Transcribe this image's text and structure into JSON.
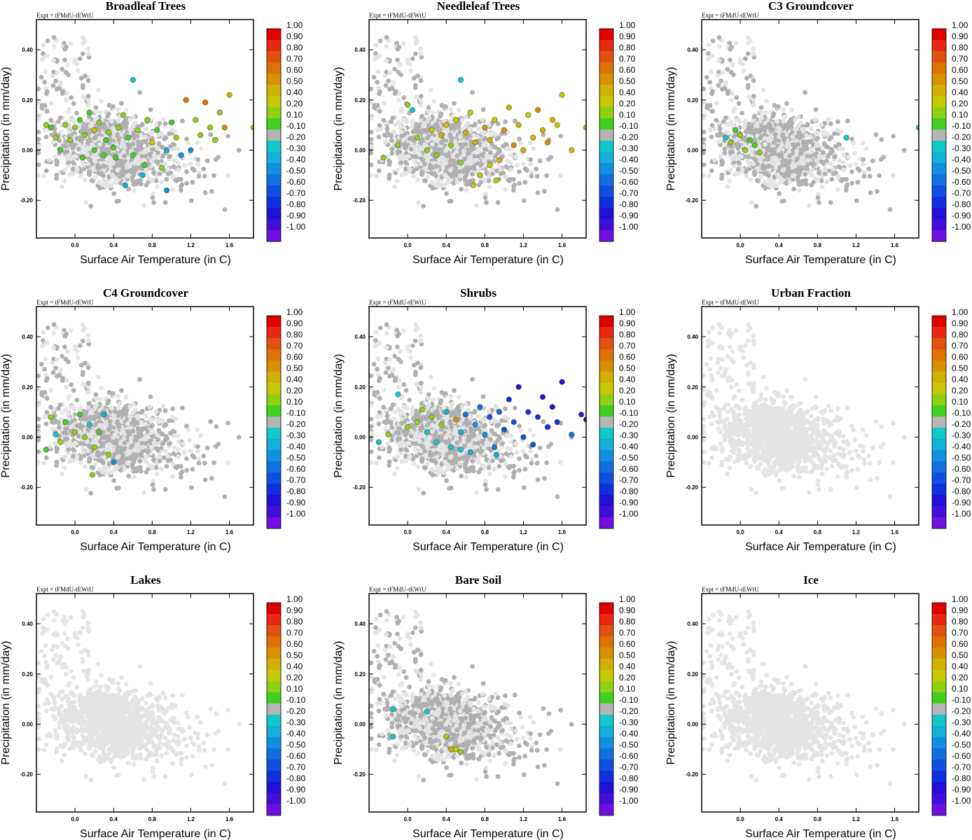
{
  "figure": {
    "expt_label": "Expt = tFMdU-tEWtU"
  },
  "colorbar": {
    "labels": [
      "1.00",
      "0.90",
      "0.80",
      "0.70",
      "0.60",
      "0.50",
      "0.40",
      "0.20",
      "0.10",
      "-0.10",
      "-0.20",
      "-0.30",
      "-0.40",
      "-0.50",
      "-0.60",
      "-0.70",
      "-0.80",
      "-0.90",
      "-1.00"
    ],
    "colors": [
      "#e00000",
      "#e82810",
      "#e05010",
      "#e07000",
      "#d89000",
      "#d0b000",
      "#c8c800",
      "#90d010",
      "#40d020",
      "#b4b4b4",
      "#10c8c8",
      "#10b0d8",
      "#1090e0",
      "#1070e0",
      "#1050e0",
      "#1030e0",
      "#2010d8",
      "#4010d8",
      "#7010e0"
    ]
  },
  "chart_data": [
    {
      "type": "scatter",
      "title": "Broadleaf Trees",
      "xlabel": "Surface Air Temperature (in C)",
      "ylabel": "Precipitation (in mm/day)",
      "xlim": [
        -0.4,
        1.85
      ],
      "ylim": [
        -0.35,
        0.52
      ],
      "xticks": [
        "0.0",
        "0.4",
        "0.8",
        "1.2",
        "1.6"
      ],
      "yticks": [
        "0.40",
        "0.20",
        "0.00",
        "-0.20"
      ],
      "highlight": [
        [
          -0.25,
          0.09,
          0.15
        ],
        [
          -0.2,
          0.05,
          0.2
        ],
        [
          -0.15,
          0.0,
          0.15
        ],
        [
          -0.1,
          0.1,
          0.2
        ],
        [
          -0.05,
          0.04,
          0.2
        ],
        [
          0.0,
          0.09,
          0.3
        ],
        [
          0.05,
          0.12,
          0.15
        ],
        [
          0.1,
          0.06,
          0.2
        ],
        [
          0.15,
          0.15,
          0.1
        ],
        [
          0.2,
          0.0,
          0.15
        ],
        [
          0.2,
          0.08,
          0.4
        ],
        [
          0.25,
          0.11,
          0.2
        ],
        [
          0.3,
          -0.02,
          0.15
        ],
        [
          0.32,
          0.04,
          0.1
        ],
        [
          0.35,
          0.07,
          0.2
        ],
        [
          0.4,
          0.01,
          0.15
        ],
        [
          0.42,
          -0.03,
          0.1
        ],
        [
          0.45,
          0.09,
          0.2
        ],
        [
          0.5,
          0.14,
          0.3
        ],
        [
          0.55,
          0.05,
          0.15
        ],
        [
          0.6,
          0.28,
          -0.2
        ],
        [
          0.6,
          -0.02,
          0.1
        ],
        [
          0.65,
          0.08,
          0.2
        ],
        [
          0.7,
          -0.1,
          -0.3
        ],
        [
          0.72,
          -0.06,
          0.15
        ],
        [
          0.75,
          0.12,
          0.2
        ],
        [
          0.8,
          0.03,
          0.4
        ],
        [
          0.85,
          0.08,
          0.1
        ],
        [
          0.9,
          -0.07,
          0.2
        ],
        [
          0.95,
          0.0,
          -0.3
        ],
        [
          1.0,
          0.11,
          0.1
        ],
        [
          1.05,
          0.05,
          0.2
        ],
        [
          1.1,
          -0.02,
          -0.4
        ],
        [
          1.15,
          0.2,
          0.7
        ],
        [
          1.2,
          0.0,
          -0.4
        ],
        [
          1.25,
          0.12,
          0.2
        ],
        [
          1.3,
          0.06,
          0.2
        ],
        [
          1.35,
          0.19,
          0.7
        ],
        [
          1.4,
          0.09,
          0.2
        ],
        [
          1.45,
          0.04,
          0.3
        ],
        [
          1.5,
          0.15,
          0.3
        ],
        [
          1.55,
          0.09,
          0.6
        ],
        [
          1.6,
          0.22,
          0.5
        ],
        [
          1.85,
          0.09,
          0.5
        ],
        [
          0.52,
          -0.14,
          -0.3
        ],
        [
          0.95,
          -0.16,
          -0.4
        ],
        [
          -0.3,
          0.1,
          0.2
        ],
        [
          0.08,
          -0.03,
          0.1
        ]
      ]
    },
    {
      "type": "scatter",
      "title": "Needleleaf Trees",
      "xlabel": "Surface Air Temperature (in C)",
      "ylabel": "Precipitation (in mm/day)",
      "xlim": [
        -0.4,
        1.85
      ],
      "ylim": [
        -0.35,
        0.52
      ],
      "xticks": [
        "0.0",
        "0.4",
        "0.8",
        "1.2",
        "1.6"
      ],
      "yticks": [
        "0.40",
        "0.20",
        "0.00",
        "-0.20"
      ],
      "highlight": [
        [
          -0.25,
          -0.03,
          0.2
        ],
        [
          -0.1,
          0.02,
          0.2
        ],
        [
          0.0,
          0.18,
          0.2
        ],
        [
          0.05,
          0.16,
          -0.2
        ],
        [
          0.1,
          0.05,
          0.3
        ],
        [
          0.2,
          0.0,
          0.2
        ],
        [
          0.25,
          0.08,
          0.4
        ],
        [
          0.3,
          -0.02,
          0.2
        ],
        [
          0.35,
          0.06,
          0.5
        ],
        [
          0.4,
          0.1,
          0.4
        ],
        [
          0.45,
          0.02,
          0.3
        ],
        [
          0.5,
          0.12,
          0.4
        ],
        [
          0.55,
          -0.05,
          0.2
        ],
        [
          0.6,
          0.07,
          0.5
        ],
        [
          0.65,
          0.15,
          0.4
        ],
        [
          0.7,
          0.03,
          0.5
        ],
        [
          0.75,
          -0.1,
          0.4
        ],
        [
          0.8,
          0.09,
          0.6
        ],
        [
          0.85,
          0.04,
          0.5
        ],
        [
          0.9,
          0.12,
          0.4
        ],
        [
          0.95,
          -0.04,
          0.5
        ],
        [
          1.0,
          0.08,
          0.6
        ],
        [
          1.05,
          0.17,
          0.5
        ],
        [
          1.1,
          0.02,
          0.6
        ],
        [
          1.15,
          0.1,
          0.5
        ],
        [
          1.2,
          0.0,
          0.5
        ],
        [
          1.25,
          0.14,
          0.4
        ],
        [
          1.3,
          0.05,
          0.5
        ],
        [
          1.35,
          0.16,
          0.6
        ],
        [
          1.4,
          0.08,
          0.5
        ],
        [
          1.45,
          0.03,
          0.6
        ],
        [
          1.5,
          0.12,
          0.5
        ],
        [
          1.55,
          0.1,
          0.4
        ],
        [
          1.6,
          0.22,
          0.4
        ],
        [
          1.7,
          0.0,
          0.5
        ],
        [
          1.85,
          0.09,
          0.3
        ],
        [
          0.55,
          0.28,
          -0.2
        ],
        [
          0.68,
          -0.14,
          0.4
        ],
        [
          0.85,
          -0.06,
          0.4
        ],
        [
          0.92,
          -0.12,
          0.4
        ]
      ]
    },
    {
      "type": "scatter",
      "title": "C3 Groundcover",
      "xlabel": "Surface Air Temperature (in C)",
      "ylabel": "Precipitation (in mm/day)",
      "xlim": [
        -0.4,
        1.85
      ],
      "ylim": [
        -0.35,
        0.52
      ],
      "xticks": [
        "0.0",
        "0.4",
        "0.8",
        "1.2",
        "1.6"
      ],
      "yticks": [
        "0.40",
        "0.20",
        "0.00",
        "-0.20"
      ],
      "highlight": [
        [
          -0.15,
          0.05,
          -0.2
        ],
        [
          -0.1,
          0.03,
          0.2
        ],
        [
          -0.05,
          0.08,
          0.1
        ],
        [
          0.0,
          0.06,
          0.2
        ],
        [
          0.05,
          0.0,
          0.2
        ],
        [
          0.1,
          0.04,
          0.15
        ],
        [
          0.15,
          0.02,
          0.1
        ],
        [
          0.2,
          -0.01,
          0.2
        ],
        [
          1.1,
          0.05,
          -0.2
        ],
        [
          1.85,
          0.09,
          -0.2
        ]
      ]
    },
    {
      "type": "scatter",
      "title": "C4 Groundcover",
      "xlabel": "Surface Air Temperature (in C)",
      "ylabel": "Precipitation (in mm/day)",
      "xlim": [
        -0.4,
        1.85
      ],
      "ylim": [
        -0.35,
        0.52
      ],
      "xticks": [
        "0.0",
        "0.4",
        "0.8",
        "1.2",
        "1.6"
      ],
      "yticks": [
        "0.40",
        "0.20",
        "0.00",
        "-0.20"
      ],
      "highlight": [
        [
          -0.25,
          0.08,
          0.2
        ],
        [
          -0.2,
          0.01,
          -0.2
        ],
        [
          -0.15,
          -0.02,
          0.2
        ],
        [
          -0.1,
          0.06,
          0.15
        ],
        [
          0.0,
          0.02,
          0.2
        ],
        [
          0.05,
          0.09,
          0.1
        ],
        [
          0.1,
          0.0,
          0.2
        ],
        [
          0.15,
          0.05,
          -0.2
        ],
        [
          0.2,
          -0.04,
          0.2
        ],
        [
          0.25,
          0.02,
          0.1
        ],
        [
          0.3,
          0.09,
          -0.3
        ],
        [
          0.35,
          -0.07,
          0.2
        ],
        [
          0.4,
          -0.1,
          -0.4
        ],
        [
          0.18,
          -0.15,
          0.2
        ],
        [
          -0.3,
          -0.05,
          0.15
        ]
      ]
    },
    {
      "type": "scatter",
      "title": "Shrubs",
      "xlabel": "Surface Air Temperature (in C)",
      "ylabel": "Precipitation (in mm/day)",
      "xlim": [
        -0.4,
        1.85
      ],
      "ylim": [
        -0.35,
        0.52
      ],
      "xticks": [
        "0.0",
        "0.4",
        "0.8",
        "1.2",
        "1.6"
      ],
      "yticks": [
        "0.40",
        "0.20",
        "0.00",
        "-0.20"
      ],
      "highlight": [
        [
          -0.3,
          -0.02,
          -0.2
        ],
        [
          -0.2,
          0.01,
          0.2
        ],
        [
          -0.1,
          0.17,
          -0.2
        ],
        [
          0.0,
          0.04,
          0.2
        ],
        [
          0.1,
          0.06,
          0.2
        ],
        [
          0.15,
          0.11,
          0.3
        ],
        [
          0.2,
          0.02,
          -0.2
        ],
        [
          0.25,
          0.08,
          0.2
        ],
        [
          0.3,
          -0.02,
          -0.2
        ],
        [
          0.35,
          0.05,
          0.3
        ],
        [
          0.4,
          0.1,
          -0.3
        ],
        [
          0.45,
          -0.04,
          -0.2
        ],
        [
          0.5,
          0.07,
          0.6
        ],
        [
          0.55,
          0.02,
          -0.3
        ],
        [
          0.6,
          0.09,
          -0.5
        ],
        [
          0.65,
          -0.06,
          -0.3
        ],
        [
          0.7,
          0.05,
          -0.4
        ],
        [
          0.75,
          0.12,
          -0.5
        ],
        [
          0.8,
          0.01,
          -0.4
        ],
        [
          0.85,
          0.08,
          -0.6
        ],
        [
          0.9,
          -0.04,
          -0.5
        ],
        [
          0.95,
          0.1,
          -0.5
        ],
        [
          1.0,
          0.03,
          -0.6
        ],
        [
          1.05,
          0.15,
          -0.7
        ],
        [
          1.1,
          0.06,
          -0.6
        ],
        [
          1.15,
          0.2,
          -0.8
        ],
        [
          1.2,
          0.0,
          -0.6
        ],
        [
          1.25,
          0.1,
          -0.7
        ],
        [
          1.3,
          -0.03,
          -0.6
        ],
        [
          1.35,
          0.08,
          -0.7
        ],
        [
          1.4,
          0.16,
          -0.8
        ],
        [
          1.45,
          0.04,
          -0.7
        ],
        [
          1.5,
          0.12,
          -0.8
        ],
        [
          1.55,
          0.06,
          -0.7
        ],
        [
          1.6,
          0.22,
          -0.8
        ],
        [
          1.7,
          0.01,
          -0.5
        ],
        [
          1.8,
          0.09,
          -0.9
        ],
        [
          1.85,
          0.07,
          -0.8
        ],
        [
          0.55,
          -0.05,
          -0.2
        ],
        [
          0.92,
          -0.07,
          -0.3
        ]
      ]
    },
    {
      "type": "scatter",
      "title": "Urban Fraction",
      "xlabel": "Surface Air Temperature (in C)",
      "ylabel": "Precipitation (in mm/day)",
      "xlim": [
        -0.4,
        1.85
      ],
      "ylim": [
        -0.35,
        0.52
      ],
      "xticks": [
        "0.0",
        "0.4",
        "0.8",
        "1.2",
        "1.6"
      ],
      "yticks": [
        "0.40",
        "0.20",
        "0.00",
        "-0.20"
      ],
      "highlight": []
    },
    {
      "type": "scatter",
      "title": "Lakes",
      "xlabel": "Surface Air Temperature (in C)",
      "ylabel": "Precipitation (in mm/day)",
      "xlim": [
        -0.4,
        1.85
      ],
      "ylim": [
        -0.35,
        0.52
      ],
      "xticks": [
        "0.0",
        "0.4",
        "0.8",
        "1.2",
        "1.6"
      ],
      "yticks": [
        "0.40",
        "0.20",
        "0.00",
        "-0.20"
      ],
      "highlight": []
    },
    {
      "type": "scatter",
      "title": "Bare Soil",
      "xlabel": "Surface Air Temperature (in C)",
      "ylabel": "Precipitation (in mm/day)",
      "xlim": [
        -0.4,
        1.85
      ],
      "ylim": [
        -0.35,
        0.52
      ],
      "xticks": [
        "0.0",
        "0.4",
        "0.8",
        "1.2",
        "1.6"
      ],
      "yticks": [
        "0.40",
        "0.20",
        "0.00",
        "-0.20"
      ],
      "highlight": [
        [
          -0.15,
          0.06,
          -0.2
        ],
        [
          0.2,
          0.05,
          -0.2
        ],
        [
          -0.15,
          -0.05,
          -0.2
        ],
        [
          0.4,
          -0.05,
          0.2
        ],
        [
          0.45,
          -0.1,
          0.5
        ],
        [
          0.5,
          -0.1,
          0.4
        ],
        [
          0.55,
          -0.11,
          0.2
        ]
      ]
    },
    {
      "type": "scatter",
      "title": "Ice",
      "xlabel": "Surface Air Temperature (in C)",
      "ylabel": "Precipitation (in mm/day)",
      "xlim": [
        -0.4,
        1.85
      ],
      "ylim": [
        -0.35,
        0.52
      ],
      "xticks": [
        "0.0",
        "0.4",
        "0.8",
        "1.2",
        "1.6"
      ],
      "yticks": [
        "0.40",
        "0.20",
        "0.00",
        "-0.20"
      ],
      "highlight": []
    }
  ]
}
